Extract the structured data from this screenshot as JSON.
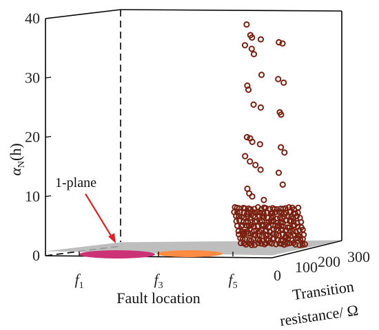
{
  "chart_data": {
    "type": "scatter",
    "projection": "3d",
    "title": "",
    "axes": {
      "x": {
        "label": "Fault location",
        "ticks": [
          {
            "base": "f",
            "sub": "1"
          },
          {
            "base": "f",
            "sub": "3"
          },
          {
            "base": "f",
            "sub": "5"
          }
        ]
      },
      "y": {
        "label_line1": "Transition",
        "label_line2": "resistance/ Ω",
        "range": [
          0,
          300
        ],
        "ticks": [
          "0",
          "100",
          "200",
          "300"
        ]
      },
      "z": {
        "label_base": "α",
        "label_sub": "N",
        "label_arg": "(h)",
        "range": [
          0,
          40
        ],
        "ticks": [
          "0",
          "10",
          "20",
          "30",
          "40"
        ]
      }
    },
    "plane": {
      "label": "1-plane",
      "z": 1,
      "color": "#b3b3b3"
    },
    "series": [
      {
        "location": "f1",
        "color": "#cc3377",
        "z_range": [
          0,
          1
        ]
      },
      {
        "location": "f3",
        "color": "#ff8c42",
        "z_range": [
          0,
          1
        ]
      },
      {
        "location": "f5",
        "color": "#7a2010",
        "outliers": [
          39.0,
          37.2,
          36.8,
          36.5,
          36.0,
          35.8,
          35.5,
          34.9,
          34.0,
          30.5,
          29.8,
          29.2,
          28.7,
          28.0,
          25.5,
          25.0,
          24.2,
          23.8,
          20.0,
          19.8,
          19.2,
          18.8,
          18.3,
          17.4,
          16.8,
          15.9,
          15.3,
          14.5,
          14.0,
          12.0,
          11.3,
          10.5,
          10.0,
          9.4
        ],
        "dense_band": [
          2,
          8
        ]
      }
    ],
    "grid": false,
    "legend": "none",
    "annotation": {
      "text": "1-plane",
      "arrow_color": "#e02020"
    }
  }
}
